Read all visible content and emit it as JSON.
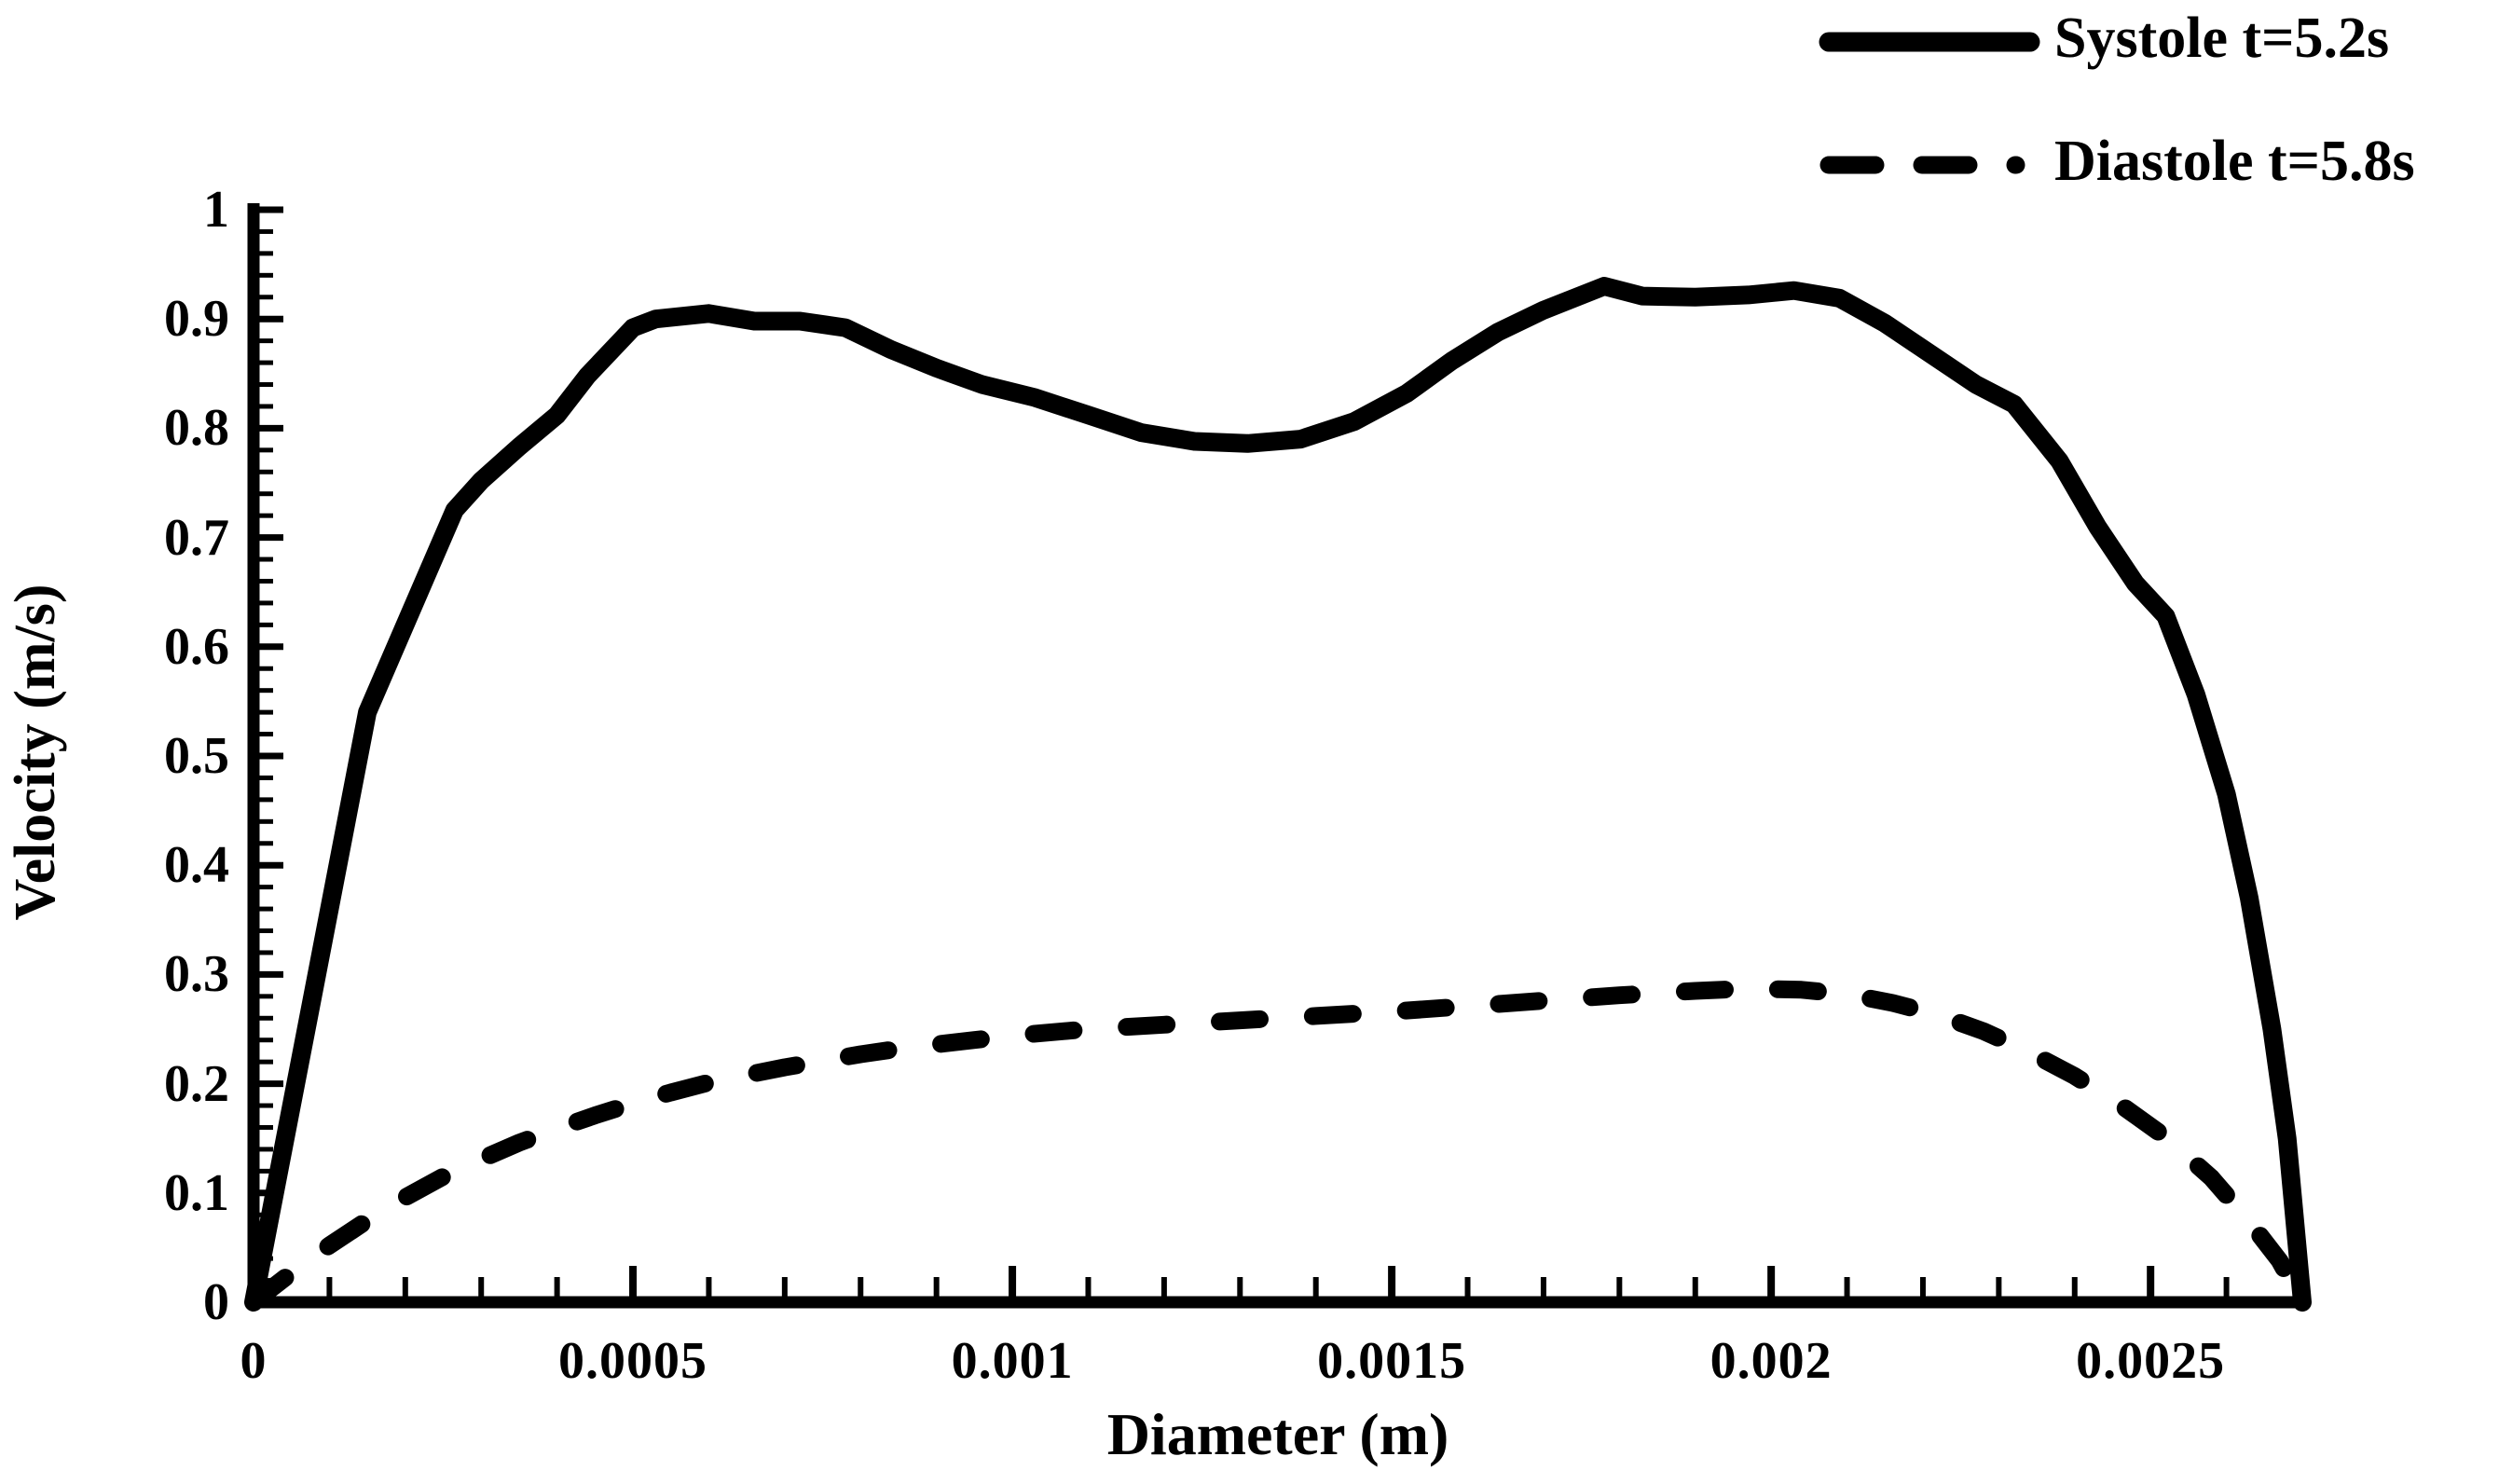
{
  "chart_data": {
    "type": "line",
    "title": "",
    "xlabel": "Diameter (m)",
    "ylabel": "Velocity (m/s)",
    "xlim": [
      0,
      0.0027
    ],
    "ylim": [
      0,
      1
    ],
    "grid": false,
    "legend_position": "top-right",
    "background_color": "#ffffff",
    "line_color": "#000000",
    "x_minor_tick_step": 0.0001,
    "x_major_every": 5,
    "y_minor_tick_step": 0.02,
    "y_major_every": 5,
    "x_ticks": [
      {
        "v": 0,
        "label": "0"
      },
      {
        "v": 0.0005,
        "label": "0.0005"
      },
      {
        "v": 0.001,
        "label": "0.001"
      },
      {
        "v": 0.0015,
        "label": "0.0015"
      },
      {
        "v": 0.002,
        "label": "0.002"
      },
      {
        "v": 0.0025,
        "label": "0.0025"
      }
    ],
    "y_ticks": [
      {
        "v": 0,
        "label": "0"
      },
      {
        "v": 0.1,
        "label": "0.1"
      },
      {
        "v": 0.2,
        "label": "0.2"
      },
      {
        "v": 0.3,
        "label": "0.3"
      },
      {
        "v": 0.4,
        "label": "0.4"
      },
      {
        "v": 0.5,
        "label": "0.5"
      },
      {
        "v": 0.6,
        "label": "0.6"
      },
      {
        "v": 0.7,
        "label": "0.7"
      },
      {
        "v": 0.8,
        "label": "0.8"
      },
      {
        "v": 0.9,
        "label": "0.9"
      },
      {
        "v": 1,
        "label": "1"
      }
    ],
    "series": [
      {
        "name": "Systole t=5.2s",
        "style": "solid",
        "color": "#000000",
        "points": [
          [
            0,
            0
          ],
          [
            7.5e-05,
            0.27
          ],
          [
            0.00015,
            0.54
          ],
          [
            0.000265,
            0.725
          ],
          [
            0.0003,
            0.752
          ],
          [
            0.00035,
            0.783
          ],
          [
            0.0004,
            0.812
          ],
          [
            0.00044,
            0.848
          ],
          [
            0.0005,
            0.892
          ],
          [
            0.00053,
            0.9
          ],
          [
            0.0006,
            0.905
          ],
          [
            0.00066,
            0.898
          ],
          [
            0.00072,
            0.898
          ],
          [
            0.00078,
            0.892
          ],
          [
            0.00084,
            0.872
          ],
          [
            0.0009,
            0.855
          ],
          [
            0.00096,
            0.84
          ],
          [
            0.00103,
            0.828
          ],
          [
            0.0011,
            0.812
          ],
          [
            0.00117,
            0.796
          ],
          [
            0.00124,
            0.788
          ],
          [
            0.00131,
            0.786
          ],
          [
            0.00138,
            0.79
          ],
          [
            0.00145,
            0.806
          ],
          [
            0.00152,
            0.832
          ],
          [
            0.00158,
            0.862
          ],
          [
            0.00164,
            0.888
          ],
          [
            0.0017,
            0.908
          ],
          [
            0.00178,
            0.93
          ],
          [
            0.00183,
            0.921
          ],
          [
            0.0019,
            0.92
          ],
          [
            0.00197,
            0.922
          ],
          [
            0.00203,
            0.926
          ],
          [
            0.00209,
            0.919
          ],
          [
            0.00215,
            0.896
          ],
          [
            0.00221,
            0.868
          ],
          [
            0.00227,
            0.84
          ],
          [
            0.00232,
            0.822
          ],
          [
            0.00238,
            0.77
          ],
          [
            0.00243,
            0.71
          ],
          [
            0.00248,
            0.658
          ],
          [
            0.00252,
            0.628
          ],
          [
            0.00256,
            0.556
          ],
          [
            0.0026,
            0.465
          ],
          [
            0.00263,
            0.37
          ],
          [
            0.00266,
            0.25
          ],
          [
            0.00268,
            0.15
          ],
          [
            0.0027,
            0
          ]
        ]
      },
      {
        "name": "Diastole t=5.8s",
        "style": "dashed",
        "color": "#000000",
        "points": [
          [
            0,
            0
          ],
          [
            5e-05,
            0.027
          ],
          [
            0.0001,
            0.052
          ],
          [
            0.00015,
            0.075
          ],
          [
            0.0002,
            0.096
          ],
          [
            0.00025,
            0.115
          ],
          [
            0.0003,
            0.131
          ],
          [
            0.00035,
            0.146
          ],
          [
            0.0004,
            0.159
          ],
          [
            0.00045,
            0.171
          ],
          [
            0.0005,
            0.182
          ],
          [
            0.00055,
            0.192
          ],
          [
            0.0006,
            0.201
          ],
          [
            0.00065,
            0.208
          ],
          [
            0.0007,
            0.215
          ],
          [
            0.00075,
            0.221
          ],
          [
            0.0008,
            0.227
          ],
          [
            0.00085,
            0.232
          ],
          [
            0.0009,
            0.236
          ],
          [
            0.00095,
            0.24
          ],
          [
            0.001,
            0.244
          ],
          [
            0.0011,
            0.25
          ],
          [
            0.0012,
            0.254
          ],
          [
            0.0013,
            0.258
          ],
          [
            0.0014,
            0.262
          ],
          [
            0.0015,
            0.266
          ],
          [
            0.0016,
            0.271
          ],
          [
            0.0017,
            0.276
          ],
          [
            0.0018,
            0.281
          ],
          [
            0.0019,
            0.285
          ],
          [
            0.00197,
            0.287
          ],
          [
            0.00204,
            0.286
          ],
          [
            0.0021,
            0.282
          ],
          [
            0.00216,
            0.274
          ],
          [
            0.00222,
            0.263
          ],
          [
            0.00228,
            0.248
          ],
          [
            0.00234,
            0.229
          ],
          [
            0.0024,
            0.207
          ],
          [
            0.00246,
            0.181
          ],
          [
            0.00252,
            0.151
          ],
          [
            0.00258,
            0.114
          ],
          [
            0.00263,
            0.074
          ],
          [
            0.00267,
            0.038
          ],
          [
            0.0027,
            0
          ]
        ]
      }
    ]
  }
}
